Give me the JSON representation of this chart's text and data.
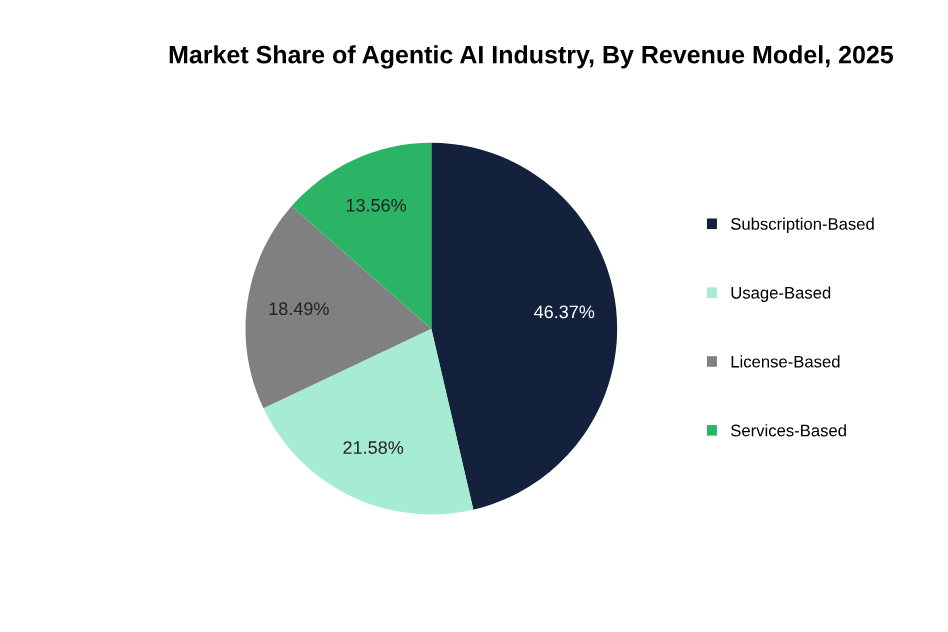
{
  "chart_data": {
    "type": "pie",
    "title": "Market Share of Agentic AI Industry, By Revenue Model, 2025",
    "categories": [
      "Subscription-Based",
      "Usage-Based",
      "License-Based",
      "Services-Based"
    ],
    "values": [
      46.37,
      21.58,
      18.49,
      13.56
    ],
    "colors": [
      "#14213d",
      "#a6ecd2",
      "#808080",
      "#2bb366"
    ],
    "value_labels": [
      "46.37%",
      "21.58%",
      "18.49%",
      "13.56%"
    ],
    "legend": "right"
  }
}
